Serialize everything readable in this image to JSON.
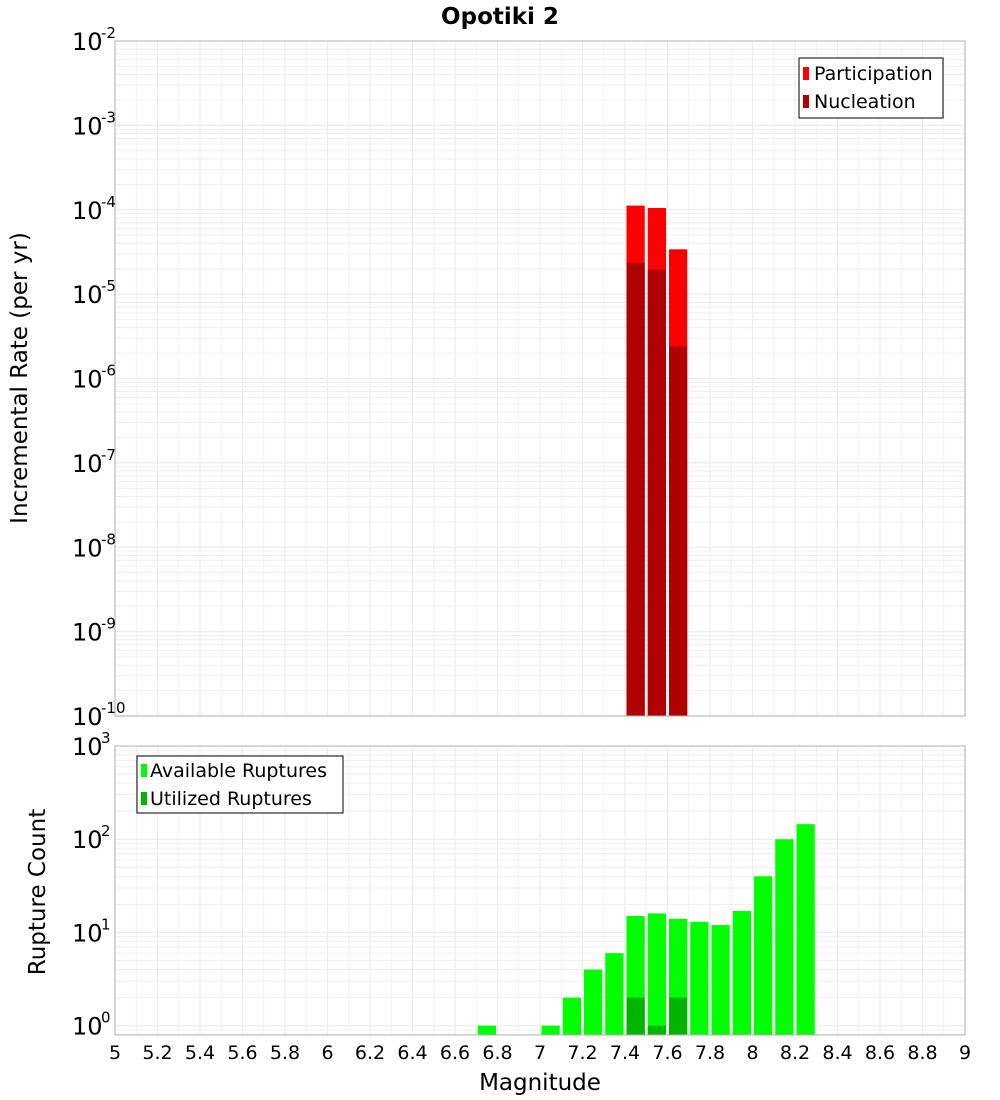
{
  "chart_data": {
    "title": "Opotiki 2",
    "xlabel": "Magnitude",
    "xlim": [
      5,
      9
    ],
    "xticks": [
      "5",
      "5.2",
      "5.4",
      "5.6",
      "5.8",
      "6",
      "6.2",
      "6.4",
      "6.6",
      "6.8",
      "7",
      "7.2",
      "7.4",
      "7.6",
      "7.8",
      "8",
      "8.2",
      "8.4",
      "8.6",
      "8.8",
      "9"
    ],
    "bin_width": 0.1,
    "colors": {
      "participation": "#ff0000",
      "nucleation": "#b00000",
      "available": "#00ff00",
      "utilized": "#00b400",
      "grid": "#ececec",
      "frame": "#b0b0b0"
    },
    "top_panel": {
      "type": "bar",
      "ylabel": "Incremental Rate (per yr)",
      "yscale": "log",
      "ylim_exp": [
        -10,
        -2
      ],
      "ytick_base": "10",
      "ytick_exponents": [
        "-2",
        "-3",
        "-4",
        "-5",
        "-6",
        "-7",
        "-8",
        "-9",
        "-10"
      ],
      "legend": [
        "Participation",
        "Nucleation"
      ],
      "series": [
        {
          "name": "Participation",
          "x": [
            7.45,
            7.55,
            7.65
          ],
          "values": [
            0.000112,
            0.000105,
            3.4e-05
          ]
        },
        {
          "name": "Nucleation",
          "x": [
            7.45,
            7.55,
            7.65
          ],
          "values": [
            2.35e-05,
            1.95e-05,
            2.4e-06
          ]
        }
      ]
    },
    "bottom_panel": {
      "type": "bar",
      "ylabel": "Rupture Count",
      "yscale": "log",
      "ylim_exp": [
        -0.1,
        3
      ],
      "ytick_base": "10",
      "ytick_exponents": [
        "3",
        "2",
        "1",
        "0"
      ],
      "legend": [
        "Available Ruptures",
        "Utilized Ruptures"
      ],
      "series": [
        {
          "name": "Available Ruptures",
          "x": [
            6.75,
            7.05,
            7.15,
            7.25,
            7.35,
            7.45,
            7.55,
            7.65,
            7.75,
            7.85,
            7.95,
            8.05,
            8.15,
            8.25
          ],
          "values": [
            1,
            1,
            2,
            4,
            6,
            15,
            16,
            14,
            13,
            12,
            17,
            40,
            100,
            145
          ]
        },
        {
          "name": "Utilized Ruptures",
          "x": [
            7.45,
            7.55,
            7.65
          ],
          "values": [
            2,
            1,
            2
          ]
        }
      ]
    }
  }
}
